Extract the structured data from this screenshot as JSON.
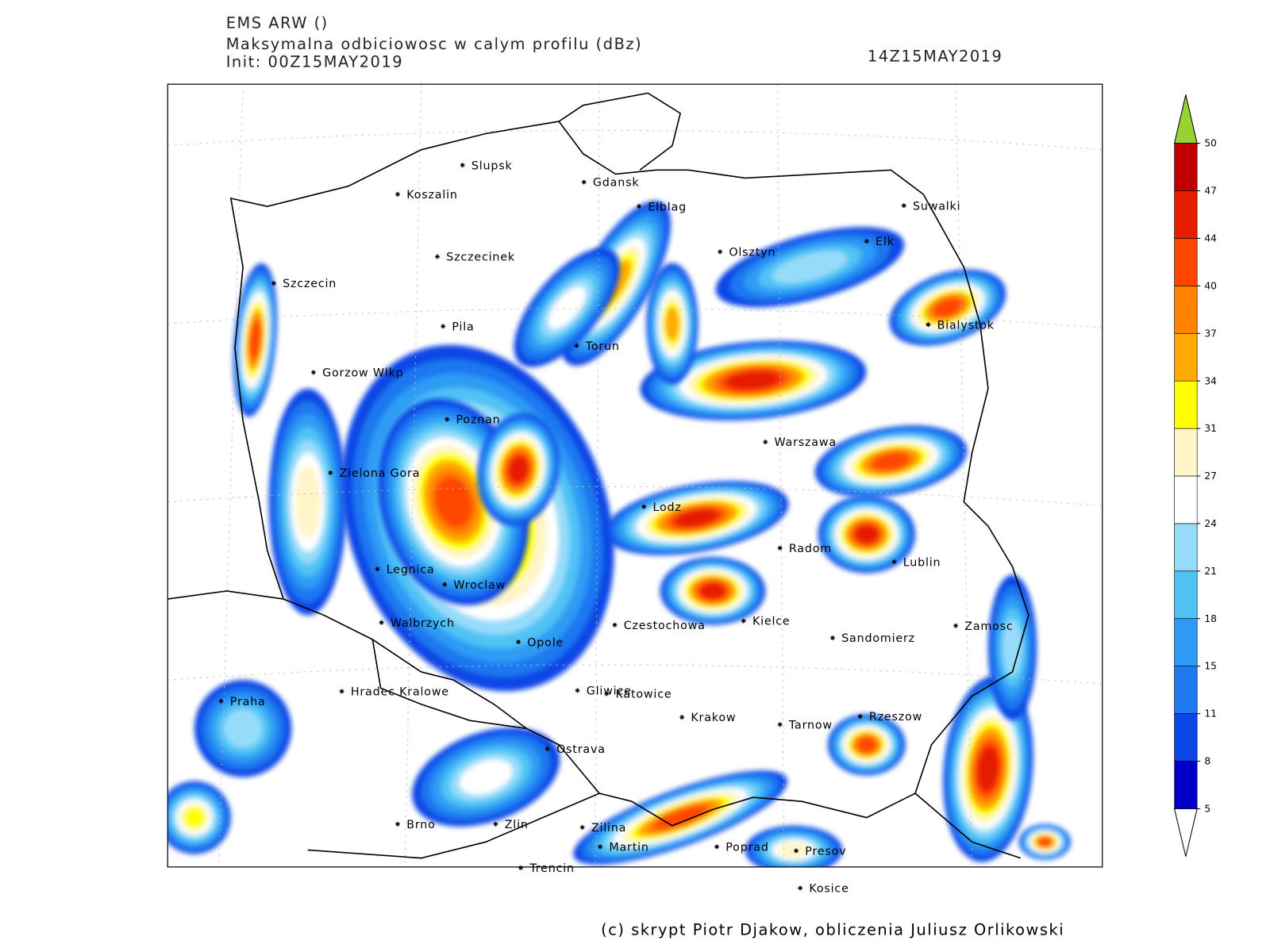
{
  "header": {
    "model": "EMS ARW ()",
    "field": "Maksymalna odbiciowosc w calym profilu (dBz)",
    "init": "Init: 00Z15MAY2019",
    "valid": "14Z15MAY2019"
  },
  "footer": "(c) skrypt Piotr Djakow, obliczenia Juliusz Orlikowski",
  "colorbar": {
    "levels": [
      5,
      8,
      11,
      15,
      18,
      21,
      24,
      27,
      31,
      34,
      37,
      40,
      44,
      47,
      50
    ],
    "colors": [
      "#0000c8",
      "#0a46e6",
      "#1e78f0",
      "#2d9bf5",
      "#50c3f5",
      "#96dcfa",
      "#ffffff",
      "#fff5c8",
      "#ffff00",
      "#ffaa00",
      "#ff8200",
      "#ff4600",
      "#e61e00",
      "#c00000"
    ],
    "over_color": "#96d232",
    "under_color": "#ffffff"
  },
  "cities": [
    "Slupsk",
    "Koszalin",
    "Gdansk",
    "Elblag",
    "Suwalki",
    "Elk",
    "Olsztyn",
    "Szczecinek",
    "Szczecin",
    "Bialystok",
    "Pila",
    "Torun",
    "Gorzow Wlkp",
    "Poznan",
    "Warszawa",
    "Zielona Gora",
    "Lodz",
    "Radom",
    "Lublin",
    "Legnica",
    "Wroclaw",
    "Walbrzych",
    "Czestochowa",
    "Kielce",
    "Zamosc",
    "Sandomierz",
    "Opole",
    "Praha",
    "Hradec Kralowe",
    "Gliwice",
    "Katowice",
    "Krakow",
    "Tarnow",
    "Rzeszow",
    "Ostrava",
    "Brno",
    "Zlin",
    "Zilina",
    "Martin",
    "Poprad",
    "Presov",
    "Trencin",
    "Kosice"
  ]
}
